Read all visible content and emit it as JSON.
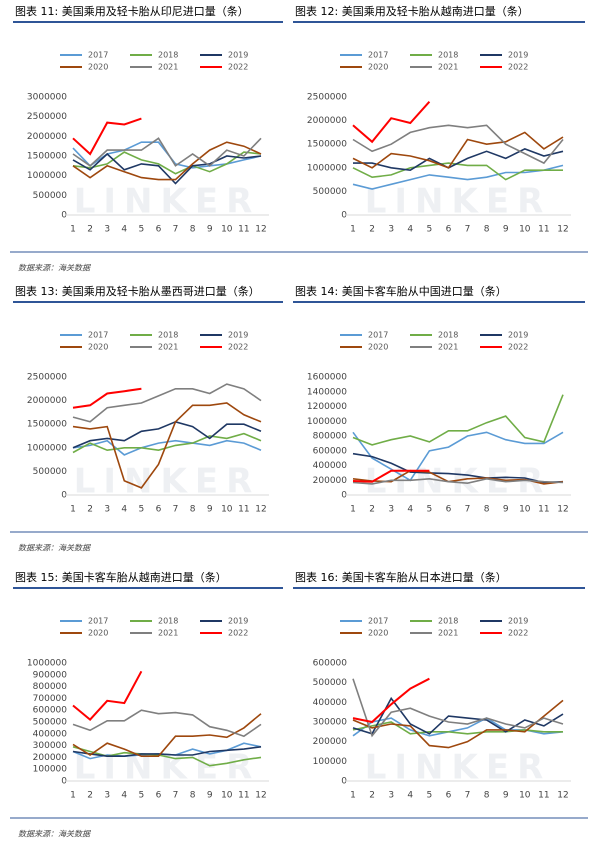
{
  "chart_data": [
    {
      "type": "line",
      "title": "图表 11:  美国乘用及轻卡胎从印尼进口量（条）",
      "categories": [
        "1",
        "2",
        "3",
        "4",
        "5",
        "6",
        "7",
        "8",
        "9",
        "10",
        "11",
        "12"
      ],
      "ylim": [
        0,
        3000000
      ],
      "yticks": [
        0,
        500000,
        1000000,
        1500000,
        2000000,
        2500000,
        3000000
      ],
      "grid": false,
      "series": [
        {
          "name": "2017",
          "color": "#5b9bd5",
          "values": [
            1700000,
            1250000,
            1550000,
            1650000,
            1850000,
            1850000,
            1300000,
            1200000,
            1250000,
            1300000,
            1400000,
            1500000
          ]
        },
        {
          "name": "2018",
          "color": "#70ad47",
          "values": [
            1250000,
            1200000,
            1300000,
            1600000,
            1400000,
            1300000,
            1050000,
            1250000,
            1100000,
            1300000,
            1600000,
            1550000
          ]
        },
        {
          "name": "2019",
          "color": "#1f3864",
          "values": [
            1400000,
            1150000,
            1550000,
            1150000,
            1300000,
            1250000,
            800000,
            1250000,
            1300000,
            1500000,
            1450000,
            1500000
          ]
        },
        {
          "name": "2020",
          "color": "#9e480e",
          "values": [
            1250000,
            950000,
            1250000,
            1100000,
            950000,
            900000,
            900000,
            1300000,
            1650000,
            1850000,
            1750000,
            1550000
          ]
        },
        {
          "name": "2021",
          "color": "#7f7f7f",
          "values": [
            1550000,
            1250000,
            1650000,
            1650000,
            1650000,
            1950000,
            1250000,
            1550000,
            1250000,
            1650000,
            1500000,
            1950000
          ]
        },
        {
          "name": "2022",
          "color": "#ff0000",
          "values": [
            1950000,
            1550000,
            2350000,
            2300000,
            2450000,
            null,
            null,
            null,
            null,
            null,
            null,
            null
          ]
        }
      ]
    },
    {
      "type": "line",
      "title": "图表 12:  美国乘用及轻卡胎从越南进口量（条）",
      "categories": [
        "1",
        "2",
        "3",
        "4",
        "5",
        "6",
        "7",
        "8",
        "9",
        "10",
        "11",
        "12"
      ],
      "ylim": [
        0,
        2500000
      ],
      "yticks": [
        0,
        500000,
        1000000,
        1500000,
        2000000,
        2500000
      ],
      "grid": false,
      "series": [
        {
          "name": "2017",
          "color": "#5b9bd5",
          "values": [
            650000,
            550000,
            650000,
            750000,
            850000,
            800000,
            750000,
            800000,
            900000,
            900000,
            950000,
            1050000
          ]
        },
        {
          "name": "2018",
          "color": "#70ad47",
          "values": [
            1000000,
            800000,
            850000,
            1000000,
            1050000,
            1100000,
            1050000,
            1050000,
            750000,
            950000,
            950000,
            950000
          ]
        },
        {
          "name": "2019",
          "color": "#1f3864",
          "values": [
            1100000,
            1100000,
            1000000,
            950000,
            1200000,
            1000000,
            1200000,
            1350000,
            1200000,
            1400000,
            1250000,
            1350000
          ]
        },
        {
          "name": "2020",
          "color": "#9e480e",
          "values": [
            1200000,
            1000000,
            1300000,
            1250000,
            1150000,
            1000000,
            1600000,
            1500000,
            1550000,
            1750000,
            1400000,
            1650000
          ]
        },
        {
          "name": "2021",
          "color": "#7f7f7f",
          "values": [
            1600000,
            1350000,
            1500000,
            1750000,
            1850000,
            1900000,
            1850000,
            1900000,
            1500000,
            1300000,
            1100000,
            1600000
          ]
        },
        {
          "name": "2022",
          "color": "#ff0000",
          "values": [
            1900000,
            1550000,
            2050000,
            1950000,
            2400000,
            null,
            null,
            null,
            null,
            null,
            null,
            null
          ]
        }
      ]
    },
    {
      "type": "line",
      "title": "图表 13:  美国乘用及轻卡胎从墨西哥进口量（条）",
      "categories": [
        "1",
        "2",
        "3",
        "4",
        "5",
        "6",
        "7",
        "8",
        "9",
        "10",
        "11",
        "12"
      ],
      "ylim": [
        0,
        2500000
      ],
      "yticks": [
        0,
        500000,
        1000000,
        1500000,
        2000000,
        2500000
      ],
      "grid": false,
      "series": [
        {
          "name": "2017",
          "color": "#5b9bd5",
          "values": [
            1000000,
            1050000,
            1150000,
            850000,
            1000000,
            1100000,
            1150000,
            1100000,
            1050000,
            1150000,
            1100000,
            950000
          ]
        },
        {
          "name": "2018",
          "color": "#70ad47",
          "values": [
            900000,
            1100000,
            950000,
            1000000,
            1000000,
            950000,
            1050000,
            1100000,
            1250000,
            1200000,
            1300000,
            1150000
          ]
        },
        {
          "name": "2019",
          "color": "#1f3864",
          "values": [
            1000000,
            1150000,
            1200000,
            1150000,
            1350000,
            1400000,
            1550000,
            1450000,
            1200000,
            1500000,
            1500000,
            1350000
          ]
        },
        {
          "name": "2020",
          "color": "#9e480e",
          "values": [
            1450000,
            1400000,
            1450000,
            300000,
            150000,
            650000,
            1550000,
            1900000,
            1900000,
            1950000,
            1700000,
            1550000
          ]
        },
        {
          "name": "2021",
          "color": "#7f7f7f",
          "values": [
            1650000,
            1550000,
            1850000,
            1900000,
            1950000,
            2100000,
            2250000,
            2250000,
            2150000,
            2350000,
            2250000,
            2000000
          ]
        },
        {
          "name": "2022",
          "color": "#ff0000",
          "values": [
            1850000,
            1900000,
            2150000,
            2200000,
            2250000,
            null,
            null,
            null,
            null,
            null,
            null,
            null
          ]
        }
      ]
    },
    {
      "type": "line",
      "title": "图表 14:  美国卡客车胎从中国进口量（条）",
      "categories": [
        "1",
        "2",
        "3",
        "4",
        "5",
        "6",
        "7",
        "8",
        "9",
        "10",
        "11",
        "12"
      ],
      "ylim": [
        0,
        1600000
      ],
      "yticks": [
        0,
        200000,
        400000,
        600000,
        800000,
        1000000,
        1200000,
        1400000,
        1600000
      ],
      "grid": false,
      "series": [
        {
          "name": "2017",
          "color": "#5b9bd5",
          "values": [
            850000,
            500000,
            350000,
            200000,
            600000,
            650000,
            800000,
            850000,
            750000,
            700000,
            700000,
            850000
          ]
        },
        {
          "name": "2018",
          "color": "#70ad47",
          "values": [
            780000,
            680000,
            750000,
            800000,
            720000,
            870000,
            870000,
            980000,
            1070000,
            780000,
            720000,
            1360000
          ]
        },
        {
          "name": "2019",
          "color": "#1f3864",
          "values": [
            560000,
            520000,
            430000,
            310000,
            300000,
            290000,
            270000,
            230000,
            240000,
            230000,
            170000,
            180000
          ]
        },
        {
          "name": "2020",
          "color": "#9e480e",
          "values": [
            220000,
            190000,
            180000,
            330000,
            310000,
            180000,
            220000,
            230000,
            200000,
            210000,
            150000,
            180000
          ]
        },
        {
          "name": "2021",
          "color": "#7f7f7f",
          "values": [
            170000,
            150000,
            200000,
            200000,
            220000,
            180000,
            160000,
            220000,
            180000,
            200000,
            180000,
            170000
          ]
        },
        {
          "name": "2022",
          "color": "#ff0000",
          "values": [
            190000,
            180000,
            330000,
            330000,
            330000,
            null,
            null,
            null,
            null,
            null,
            null,
            null
          ]
        }
      ]
    },
    {
      "type": "line",
      "title": "图表 15:  美国卡客车胎从越南进口量（条）",
      "categories": [
        "1",
        "2",
        "3",
        "4",
        "5",
        "6",
        "7",
        "8",
        "9",
        "10",
        "11",
        "12"
      ],
      "ylim": [
        0,
        1000000
      ],
      "yticks": [
        0,
        100000,
        200000,
        300000,
        400000,
        500000,
        600000,
        700000,
        800000,
        900000,
        1000000
      ],
      "grid": false,
      "series": [
        {
          "name": "2017",
          "color": "#5b9bd5",
          "values": [
            250000,
            190000,
            220000,
            210000,
            220000,
            230000,
            220000,
            270000,
            230000,
            260000,
            320000,
            290000
          ]
        },
        {
          "name": "2018",
          "color": "#70ad47",
          "values": [
            290000,
            250000,
            210000,
            240000,
            230000,
            220000,
            190000,
            200000,
            130000,
            150000,
            180000,
            200000
          ]
        },
        {
          "name": "2019",
          "color": "#1f3864",
          "values": [
            250000,
            230000,
            210000,
            210000,
            230000,
            230000,
            220000,
            220000,
            250000,
            260000,
            270000,
            290000
          ]
        },
        {
          "name": "2020",
          "color": "#9e480e",
          "values": [
            310000,
            220000,
            320000,
            270000,
            210000,
            210000,
            380000,
            380000,
            390000,
            370000,
            450000,
            570000
          ]
        },
        {
          "name": "2021",
          "color": "#7f7f7f",
          "values": [
            480000,
            430000,
            510000,
            510000,
            600000,
            570000,
            580000,
            560000,
            460000,
            430000,
            380000,
            480000
          ]
        },
        {
          "name": "2022",
          "color": "#ff0000",
          "values": [
            640000,
            520000,
            680000,
            660000,
            930000,
            null,
            null,
            null,
            null,
            null,
            null,
            null
          ]
        }
      ]
    },
    {
      "type": "line",
      "title": "图表 16:  美国卡客车胎从日本进口量（条）",
      "categories": [
        "1",
        "2",
        "3",
        "4",
        "5",
        "6",
        "7",
        "8",
        "9",
        "10",
        "11",
        "12"
      ],
      "ylim": [
        0,
        600000
      ],
      "yticks": [
        0,
        100000,
        200000,
        300000,
        400000,
        500000,
        600000
      ],
      "grid": false,
      "series": [
        {
          "name": "2017",
          "color": "#5b9bd5",
          "values": [
            230000,
            300000,
            320000,
            260000,
            230000,
            250000,
            270000,
            320000,
            260000,
            260000,
            240000,
            250000
          ]
        },
        {
          "name": "2018",
          "color": "#70ad47",
          "values": [
            260000,
            280000,
            300000,
            240000,
            250000,
            250000,
            240000,
            250000,
            250000,
            260000,
            250000,
            250000
          ]
        },
        {
          "name": "2019",
          "color": "#1f3864",
          "values": [
            270000,
            240000,
            420000,
            290000,
            240000,
            330000,
            320000,
            310000,
            250000,
            310000,
            280000,
            340000
          ]
        },
        {
          "name": "2020",
          "color": "#9e480e",
          "values": [
            310000,
            270000,
            290000,
            280000,
            180000,
            170000,
            200000,
            260000,
            260000,
            250000,
            330000,
            410000
          ]
        },
        {
          "name": "2021",
          "color": "#7f7f7f",
          "values": [
            520000,
            230000,
            350000,
            370000,
            330000,
            300000,
            290000,
            320000,
            290000,
            270000,
            320000,
            290000
          ]
        },
        {
          "name": "2022",
          "color": "#ff0000",
          "values": [
            320000,
            300000,
            390000,
            470000,
            520000,
            null,
            null,
            null,
            null,
            null,
            null,
            null
          ]
        }
      ]
    }
  ],
  "watermark": "LINKER",
  "source_notes": [
    "数据来源：海关数据",
    "数据来源：海关数据",
    "数据来源：海关数据"
  ]
}
